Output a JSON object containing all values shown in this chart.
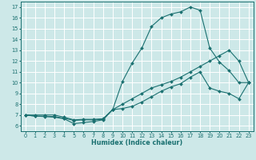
{
  "bg_color": "#cde8e8",
  "grid_color": "#ffffff",
  "line_color": "#1a7070",
  "xlabel": "Humidex (Indice chaleur)",
  "xlim": [
    -0.5,
    23.5
  ],
  "ylim": [
    5.5,
    17.5
  ],
  "xticks": [
    0,
    1,
    2,
    3,
    4,
    5,
    6,
    7,
    8,
    9,
    10,
    11,
    12,
    13,
    14,
    15,
    16,
    17,
    18,
    19,
    20,
    21,
    22,
    23
  ],
  "yticks": [
    6,
    7,
    8,
    9,
    10,
    11,
    12,
    13,
    14,
    15,
    16,
    17
  ],
  "curve1_x": [
    0,
    1,
    2,
    3,
    4,
    5,
    6,
    7,
    8,
    9,
    10,
    11,
    12,
    13,
    14,
    15,
    16,
    17,
    18,
    19,
    20,
    21,
    22,
    23
  ],
  "curve1_y": [
    7.0,
    6.9,
    6.85,
    6.8,
    6.65,
    6.2,
    6.3,
    6.4,
    6.55,
    7.5,
    10.1,
    11.8,
    13.2,
    15.2,
    16.0,
    16.35,
    16.55,
    17.0,
    16.7,
    13.2,
    11.9,
    11.1,
    10.0,
    10.0
  ],
  "curve2_x": [
    0,
    1,
    2,
    3,
    4,
    5,
    6,
    7,
    8,
    9,
    10,
    11,
    12,
    13,
    14,
    15,
    16,
    17,
    18,
    19,
    20,
    21,
    22,
    23
  ],
  "curve2_y": [
    7.0,
    7.0,
    7.0,
    7.0,
    6.8,
    6.55,
    6.6,
    6.6,
    6.65,
    7.5,
    7.6,
    7.8,
    8.2,
    8.7,
    9.2,
    9.6,
    9.9,
    10.5,
    11.0,
    9.5,
    9.2,
    9.0,
    8.5,
    10.0
  ],
  "curve3_x": [
    0,
    1,
    2,
    3,
    4,
    5,
    6,
    7,
    8,
    9,
    10,
    11,
    12,
    13,
    14,
    15,
    16,
    17,
    18,
    19,
    20,
    21,
    22,
    23
  ],
  "curve3_y": [
    7.0,
    6.9,
    6.9,
    6.85,
    6.7,
    6.5,
    6.55,
    6.55,
    6.6,
    7.5,
    8.0,
    8.5,
    9.0,
    9.5,
    9.8,
    10.1,
    10.5,
    11.0,
    11.5,
    12.0,
    12.5,
    13.0,
    12.0,
    10.0
  ],
  "xlabel_fontsize": 5.8,
  "tick_fontsize": 4.8,
  "marker_size": 2.0,
  "linewidth": 0.8
}
